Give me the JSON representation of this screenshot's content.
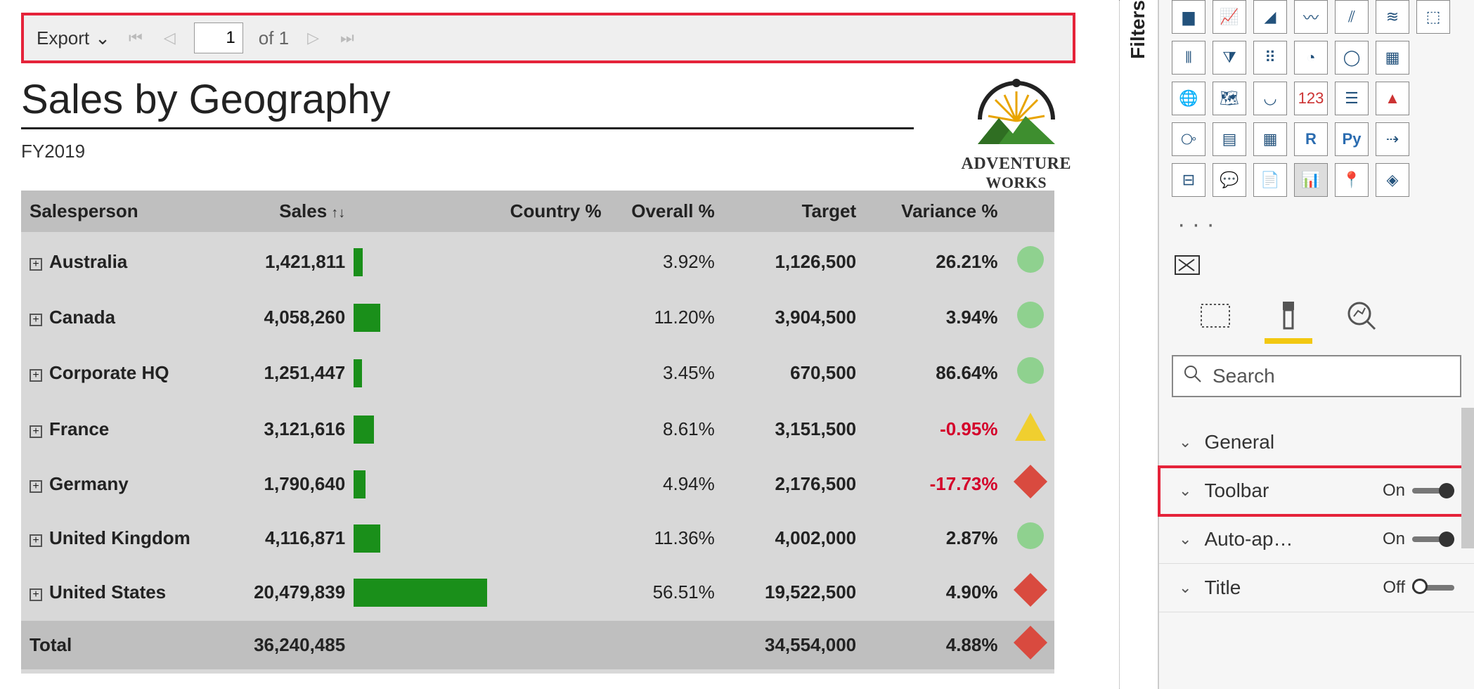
{
  "toolbar": {
    "export_label": "Export",
    "page_current": "1",
    "page_of": "of",
    "page_total": "1"
  },
  "report": {
    "title": "Sales by Geography",
    "subtitle": "FY2019",
    "logo_line1": "ADVENTURE",
    "logo_line2": "WORKS"
  },
  "table": {
    "columns": {
      "salesperson": "Salesperson",
      "sales": "Sales",
      "country_pct": "Country %",
      "overall_pct": "Overall %",
      "target": "Target",
      "variance_pct": "Variance %"
    },
    "max_sales": 20479839,
    "rows": [
      {
        "name": "Australia",
        "sales": "1,421,811",
        "sales_num": 1421811,
        "overall": "3.92%",
        "target": "1,126,500",
        "variance": "26.21%",
        "neg": false,
        "indicator": "ok"
      },
      {
        "name": "Canada",
        "sales": "4,058,260",
        "sales_num": 4058260,
        "overall": "11.20%",
        "target": "3,904,500",
        "variance": "3.94%",
        "neg": false,
        "indicator": "ok"
      },
      {
        "name": "Corporate HQ",
        "sales": "1,251,447",
        "sales_num": 1251447,
        "overall": "3.45%",
        "target": "670,500",
        "variance": "86.64%",
        "neg": false,
        "indicator": "ok"
      },
      {
        "name": "France",
        "sales": "3,121,616",
        "sales_num": 3121616,
        "overall": "8.61%",
        "target": "3,151,500",
        "variance": "-0.95%",
        "neg": true,
        "indicator": "warn"
      },
      {
        "name": "Germany",
        "sales": "1,790,640",
        "sales_num": 1790640,
        "overall": "4.94%",
        "target": "2,176,500",
        "variance": "-17.73%",
        "neg": true,
        "indicator": "bad"
      },
      {
        "name": "United Kingdom",
        "sales": "4,116,871",
        "sales_num": 4116871,
        "overall": "11.36%",
        "target": "4,002,000",
        "variance": "2.87%",
        "neg": false,
        "indicator": "ok"
      },
      {
        "name": "United States",
        "sales": "20,479,839",
        "sales_num": 20479839,
        "overall": "56.51%",
        "target": "19,522,500",
        "variance": "4.90%",
        "neg": false,
        "indicator": "bad"
      }
    ],
    "total": {
      "label": "Total",
      "sales": "36,240,485",
      "target": "34,554,000",
      "variance": "4.88%",
      "indicator": "bad"
    }
  },
  "filters_label": "Filters",
  "viz_palette_ellipsis": "· · ·",
  "search_placeholder": "Search",
  "format": {
    "general": "General",
    "toolbar": {
      "label": "Toolbar",
      "state": "On"
    },
    "autoapply": {
      "label": "Auto-ap…",
      "state": "On"
    },
    "title": {
      "label": "Title",
      "state": "Off"
    }
  }
}
